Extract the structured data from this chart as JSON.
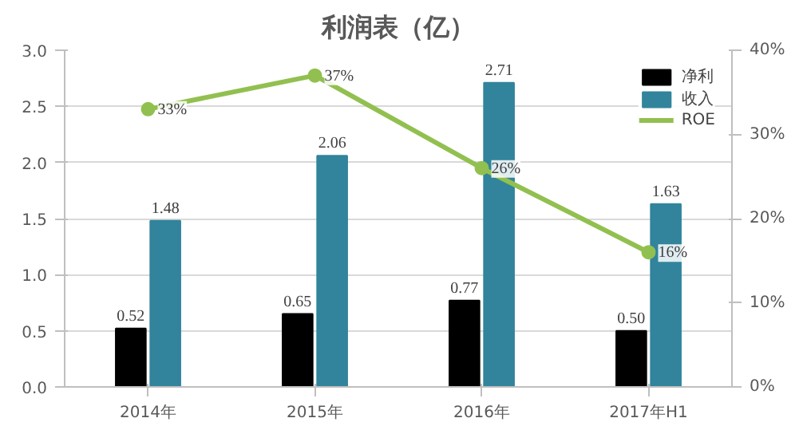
{
  "chart_data": {
    "type": "bar",
    "title": "利润表（亿）",
    "categories": [
      "2014年",
      "2015年",
      "2016年",
      "2017年H1"
    ],
    "series": [
      {
        "name": "净利",
        "color": "#000000",
        "values": [
          0.52,
          0.65,
          0.77,
          0.5
        ],
        "value_labels": [
          "0.52",
          "0.65",
          "0.77",
          "0.50"
        ]
      },
      {
        "name": "收入",
        "color": "#31849b",
        "values": [
          1.48,
          2.06,
          2.71,
          1.63
        ],
        "value_labels": [
          "1.48",
          "2.06",
          "2.71",
          "1.63"
        ]
      },
      {
        "name": "ROE",
        "type": "line",
        "axis": "y2",
        "color": "#92c050",
        "marker": "circle",
        "values": [
          33,
          37,
          26,
          16
        ],
        "value_labels": [
          "33%",
          "37%",
          "26%",
          "16%"
        ]
      }
    ],
    "ylim": [
      0,
      3.0
    ],
    "yticks": [
      {
        "value": 0,
        "label": "0.0"
      },
      {
        "value": 0.5,
        "label": "0.5"
      },
      {
        "value": 1.0,
        "label": "1.0"
      },
      {
        "value": 1.5,
        "label": "1.5"
      },
      {
        "value": 2.0,
        "label": "2.0"
      },
      {
        "value": 2.5,
        "label": "2.5"
      },
      {
        "value": 3.0,
        "label": "3.0"
      }
    ],
    "y2lim": [
      0,
      40
    ],
    "y2ticks": [
      {
        "value": 0,
        "label": "0%"
      },
      {
        "value": 10,
        "label": "10%"
      },
      {
        "value": 20,
        "label": "20%"
      },
      {
        "value": 30,
        "label": "30%"
      },
      {
        "value": 40,
        "label": "40%"
      }
    ],
    "grid": "y",
    "legend": "top right"
  }
}
